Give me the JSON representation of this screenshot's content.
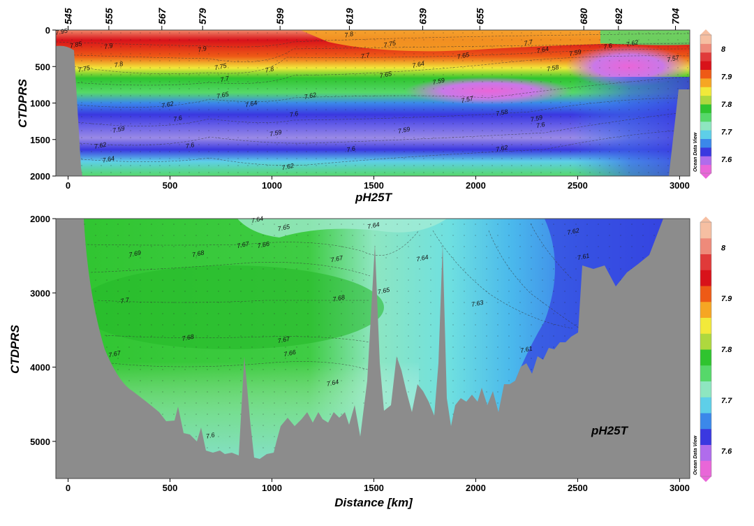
{
  "chart_data": [
    {
      "type": "heatmap",
      "panel": "upper",
      "variable": "pH25T",
      "title": "pH25T",
      "xlabel": "",
      "ylabel": "CTDPRS",
      "xlim": [
        -60,
        3050
      ],
      "ylim": [
        2000,
        0
      ],
      "x_ticks": [
        "0",
        "500",
        "1000",
        "1500",
        "2000",
        "2500",
        "3000"
      ],
      "y_ticks": [
        "0",
        "500",
        "1000",
        "1500",
        "2000"
      ],
      "stations": [
        {
          "label": "545",
          "x": 0
        },
        {
          "label": "555",
          "x": 200
        },
        {
          "label": "567",
          "x": 460
        },
        {
          "label": "579",
          "x": 660
        },
        {
          "label": "599",
          "x": 1040
        },
        {
          "label": "619",
          "x": 1380
        },
        {
          "label": "639",
          "x": 1740
        },
        {
          "label": "655",
          "x": 2020
        },
        {
          "label": "680",
          "x": 2530
        },
        {
          "label": "692",
          "x": 2700
        },
        {
          "label": "704",
          "x": 2980
        }
      ],
      "contour_labels": [
        {
          "text": "7.95",
          "x": -30,
          "y": 50
        },
        {
          "text": "7.85",
          "x": 40,
          "y": 230
        },
        {
          "text": "7.9",
          "x": 200,
          "y": 250
        },
        {
          "text": "7.9",
          "x": 660,
          "y": 290
        },
        {
          "text": "7.8",
          "x": 250,
          "y": 500
        },
        {
          "text": "7.75",
          "x": 80,
          "y": 560
        },
        {
          "text": "7.75",
          "x": 750,
          "y": 530
        },
        {
          "text": "7.8",
          "x": 990,
          "y": 570
        },
        {
          "text": "7.7",
          "x": 770,
          "y": 700
        },
        {
          "text": "7.65",
          "x": 760,
          "y": 920
        },
        {
          "text": "7.64",
          "x": 900,
          "y": 1040
        },
        {
          "text": "7.62",
          "x": 490,
          "y": 1050
        },
        {
          "text": "7.6",
          "x": 540,
          "y": 1240
        },
        {
          "text": "7.59",
          "x": 250,
          "y": 1390
        },
        {
          "text": "7.62",
          "x": 160,
          "y": 1610
        },
        {
          "text": "7.64",
          "x": 200,
          "y": 1800
        },
        {
          "text": "7.6",
          "x": 600,
          "y": 1610
        },
        {
          "text": "7.59",
          "x": 1020,
          "y": 1440
        },
        {
          "text": "7.6",
          "x": 1110,
          "y": 1180
        },
        {
          "text": "7.62",
          "x": 1190,
          "y": 930
        },
        {
          "text": "7.62",
          "x": 1080,
          "y": 1900
        },
        {
          "text": "7.6",
          "x": 1390,
          "y": 1660
        },
        {
          "text": "7.59",
          "x": 1650,
          "y": 1400
        },
        {
          "text": "7.65",
          "x": 1560,
          "y": 640
        },
        {
          "text": "7.64",
          "x": 1720,
          "y": 500
        },
        {
          "text": "7.7",
          "x": 1460,
          "y": 380
        },
        {
          "text": "7.75",
          "x": 1580,
          "y": 220
        },
        {
          "text": "7.8",
          "x": 1380,
          "y": 90
        },
        {
          "text": "7.65",
          "x": 1940,
          "y": 380
        },
        {
          "text": "7.59",
          "x": 1820,
          "y": 730
        },
        {
          "text": "7.57",
          "x": 1960,
          "y": 980
        },
        {
          "text": "7.58",
          "x": 2130,
          "y": 1160
        },
        {
          "text": "7.59",
          "x": 2300,
          "y": 1240
        },
        {
          "text": "7.6",
          "x": 2320,
          "y": 1330
        },
        {
          "text": "7.62",
          "x": 2130,
          "y": 1650
        },
        {
          "text": "7.7",
          "x": 2260,
          "y": 200
        },
        {
          "text": "7.64",
          "x": 2330,
          "y": 300
        },
        {
          "text": "7.59",
          "x": 2490,
          "y": 340
        },
        {
          "text": "7.58",
          "x": 2380,
          "y": 550
        },
        {
          "text": "7.6",
          "x": 2650,
          "y": 250
        },
        {
          "text": "7.62",
          "x": 2770,
          "y": 210
        },
        {
          "text": "7.57",
          "x": 2970,
          "y": 420
        }
      ]
    },
    {
      "type": "heatmap",
      "panel": "lower",
      "variable": "pH25T",
      "title": "pH25T",
      "xlabel": "Distance [km]",
      "ylabel": "CTDPRS",
      "xlim": [
        -60,
        3050
      ],
      "ylim": [
        5500,
        2000
      ],
      "x_ticks": [
        "0",
        "500",
        "1000",
        "1500",
        "2000",
        "2500",
        "3000"
      ],
      "y_ticks": [
        "2000",
        "3000",
        "4000",
        "5000"
      ],
      "contour_labels": [
        {
          "text": "7.64",
          "x": 930,
          "y": 2040
        },
        {
          "text": "7.65",
          "x": 1060,
          "y": 2150
        },
        {
          "text": "7.64",
          "x": 1500,
          "y": 2120
        },
        {
          "text": "7.66",
          "x": 960,
          "y": 2380
        },
        {
          "text": "7.67",
          "x": 860,
          "y": 2380
        },
        {
          "text": "7.69",
          "x": 330,
          "y": 2500
        },
        {
          "text": "7.68",
          "x": 640,
          "y": 2500
        },
        {
          "text": "7.67",
          "x": 1320,
          "y": 2570
        },
        {
          "text": "7.64",
          "x": 1740,
          "y": 2560
        },
        {
          "text": "7.62",
          "x": 2480,
          "y": 2200
        },
        {
          "text": "7.61",
          "x": 2530,
          "y": 2540
        },
        {
          "text": "7.7",
          "x": 280,
          "y": 3130
        },
        {
          "text": "7.68",
          "x": 1330,
          "y": 3100
        },
        {
          "text": "7.65",
          "x": 1550,
          "y": 3000
        },
        {
          "text": "7.63",
          "x": 2010,
          "y": 3170
        },
        {
          "text": "7.68",
          "x": 590,
          "y": 3630
        },
        {
          "text": "7.67",
          "x": 1060,
          "y": 3660
        },
        {
          "text": "7.66",
          "x": 1090,
          "y": 3840
        },
        {
          "text": "7.67",
          "x": 230,
          "y": 3850
        },
        {
          "text": "7.61",
          "x": 2250,
          "y": 3790
        },
        {
          "text": "7.64",
          "x": 1300,
          "y": 4240
        },
        {
          "text": "7.6",
          "x": 700,
          "y": 4950
        }
      ],
      "annotation": "pH25T"
    }
  ],
  "colorbar": {
    "ticks": [
      "8",
      "7.9",
      "7.8",
      "7.7",
      "7.6"
    ],
    "range": [
      7.55,
      8.05
    ],
    "watermark": "Ocean Data View",
    "colors": [
      "#e966d8",
      "#b06cec",
      "#3a38e0",
      "#3b88ea",
      "#5ecfe8",
      "#8ee6c0",
      "#56d86a",
      "#2fc42f",
      "#aed83e",
      "#f2e93a",
      "#f6a623",
      "#ee5a16",
      "#d8121a",
      "#e03a3a",
      "#ee8a7a",
      "#f6bfa2"
    ]
  }
}
